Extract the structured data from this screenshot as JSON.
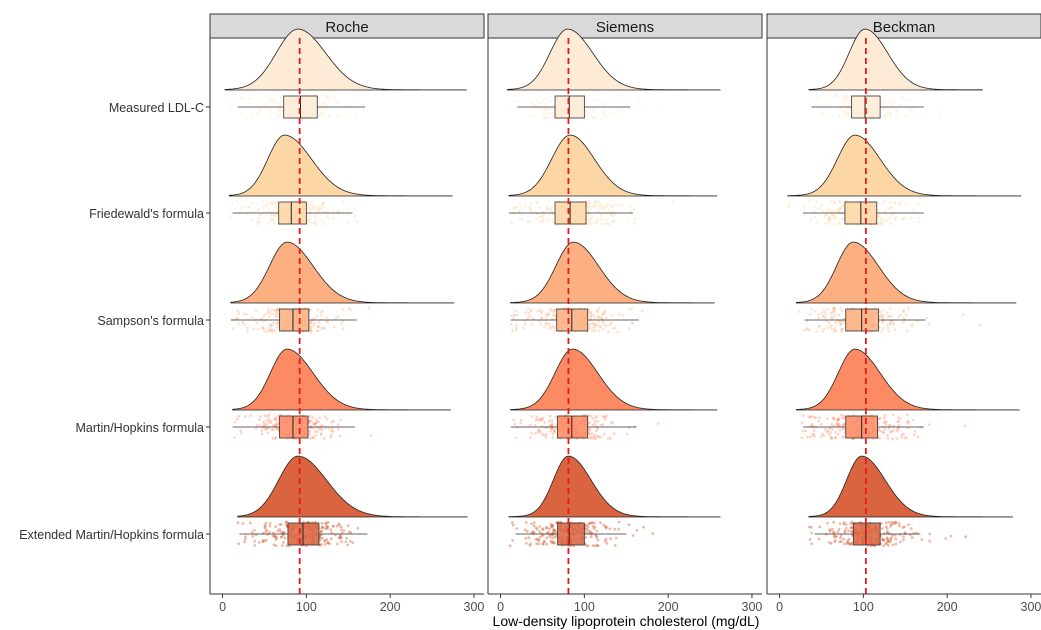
{
  "chart_data": {
    "type": "raincloud",
    "xlabel": "Low-density lipoprotein cholesterol (mg/dL)",
    "ylabel": "",
    "xlim": [
      -15,
      312
    ],
    "x_ticks": [
      0,
      100,
      200,
      300
    ],
    "grid": false,
    "legend": "none",
    "panels": [
      "Roche",
      "Siemens",
      "Beckman"
    ],
    "methods": [
      "Measured LDL-C",
      "Friedewald's formula",
      "Sampson's formula",
      "Martin/Hopkins formula",
      "Extended Martin/Hopkins formula"
    ],
    "method_colors": [
      "#FDEBD6",
      "#FDD6A6",
      "#FCAF80",
      "#FC8A63",
      "#D9643F"
    ],
    "reference_line": {
      "color": "#E31A1C",
      "values": {
        "Roche": 92,
        "Siemens": 81,
        "Beckman": 103
      }
    },
    "data": {
      "Roche": [
        {
          "method": "Measured LDL-C",
          "min": 18,
          "q1": 73,
          "median": 93,
          "q3": 113,
          "max": 170,
          "density": {
            "range": [
              3,
              291
            ],
            "mode": 90,
            "sd_left": 26,
            "sd_right": 33
          }
        },
        {
          "method": "Friedewald's formula",
          "min": 12,
          "q1": 67,
          "median": 82,
          "q3": 100,
          "max": 155,
          "density": {
            "range": [
              8,
              274
            ],
            "mode": 74,
            "sd_left": 20,
            "sd_right": 32
          }
        },
        {
          "method": "Sampson's formula",
          "min": 10,
          "q1": 68,
          "median": 84,
          "q3": 103,
          "max": 160,
          "density": {
            "range": [
              10,
              276
            ],
            "mode": 77,
            "sd_left": 21,
            "sd_right": 31
          }
        },
        {
          "method": "Martin/Hopkins formula",
          "min": 12,
          "q1": 68,
          "median": 84,
          "q3": 102,
          "max": 158,
          "density": {
            "range": [
              12,
              272
            ],
            "mode": 77,
            "sd_left": 20,
            "sd_right": 31
          }
        },
        {
          "method": "Extended Martin/Hopkins formula",
          "min": 20,
          "q1": 78,
          "median": 96,
          "q3": 115,
          "max": 173,
          "density": {
            "range": [
              18,
              292
            ],
            "mode": 90,
            "sd_left": 23,
            "sd_right": 34
          }
        }
      ],
      "Siemens": [
        {
          "method": "Measured LDL-C",
          "min": 20,
          "q1": 65,
          "median": 82,
          "q3": 100,
          "max": 155,
          "density": {
            "range": [
              8,
              262
            ],
            "mode": 80,
            "sd_left": 21,
            "sd_right": 30
          }
        },
        {
          "method": "Friedewald's formula",
          "min": 10,
          "q1": 65,
          "median": 83,
          "q3": 102,
          "max": 158,
          "density": {
            "range": [
              10,
              258
            ],
            "mode": 83,
            "sd_left": 22,
            "sd_right": 29
          }
        },
        {
          "method": "Sampson's formula",
          "min": 12,
          "q1": 67,
          "median": 85,
          "q3": 104,
          "max": 165,
          "density": {
            "range": [
              12,
              255
            ],
            "mode": 87,
            "sd_left": 21,
            "sd_right": 30
          }
        },
        {
          "method": "Martin/Hopkins formula",
          "min": 12,
          "q1": 68,
          "median": 85,
          "q3": 104,
          "max": 162,
          "density": {
            "range": [
              12,
              258
            ],
            "mode": 86,
            "sd_left": 21,
            "sd_right": 30
          }
        },
        {
          "method": "Extended Martin/Hopkins formula",
          "min": 18,
          "q1": 68,
          "median": 82,
          "q3": 100,
          "max": 150,
          "density": {
            "range": [
              10,
              262
            ],
            "mode": 81,
            "sd_left": 18,
            "sd_right": 27
          }
        }
      ],
      "Beckman": [
        {
          "method": "Measured LDL-C",
          "min": 38,
          "q1": 86,
          "median": 102,
          "q3": 120,
          "max": 172,
          "density": {
            "range": [
              35,
              242
            ],
            "mode": 102,
            "sd_left": 19,
            "sd_right": 27
          }
        },
        {
          "method": "Friedewald's formula",
          "min": 28,
          "q1": 78,
          "median": 97,
          "q3": 116,
          "max": 172,
          "density": {
            "range": [
              10,
              288
            ],
            "mode": 90,
            "sd_left": 21,
            "sd_right": 30
          }
        },
        {
          "method": "Sampson's formula",
          "min": 30,
          "q1": 79,
          "median": 98,
          "q3": 118,
          "max": 174,
          "density": {
            "range": [
              20,
              282
            ],
            "mode": 88,
            "sd_left": 20,
            "sd_right": 30
          }
        },
        {
          "method": "Martin/Hopkins formula",
          "min": 28,
          "q1": 79,
          "median": 98,
          "q3": 117,
          "max": 172,
          "density": {
            "range": [
              20,
              286
            ],
            "mode": 90,
            "sd_left": 20,
            "sd_right": 30
          }
        },
        {
          "method": "Extended Martin/Hopkins formula",
          "min": 42,
          "q1": 88,
          "median": 103,
          "q3": 120,
          "max": 168,
          "density": {
            "range": [
              35,
              278
            ],
            "mode": 98,
            "sd_left": 18,
            "sd_right": 28
          }
        }
      ]
    }
  }
}
